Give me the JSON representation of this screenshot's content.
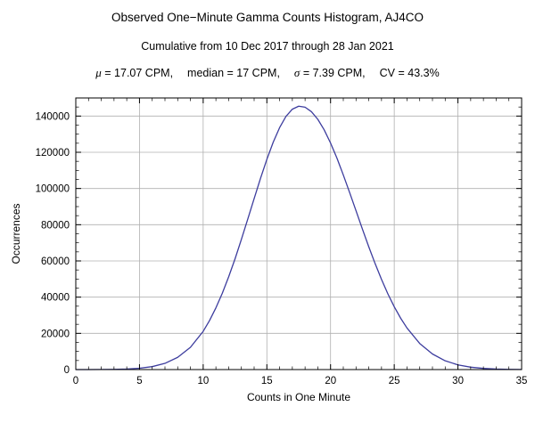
{
  "header": {
    "title": "Observed One−Minute Gamma Counts Histogram, AJ4CO",
    "subtitle": "Cumulative from 10 Dec 2017 through 28 Jan 2021",
    "stats": {
      "mu_symbol": "μ",
      "mu_rest": " = 17.07 CPM,",
      "median": "median = 17 CPM,",
      "sigma_symbol": "σ",
      "sigma_rest": " = 7.39 CPM,",
      "cv": "CV = 43.3%"
    },
    "stat_values": {
      "mean_cpm": 17.07,
      "median_cpm": 17,
      "sigma_cpm": 7.39,
      "cv_percent": 43.3
    }
  },
  "chart_data": {
    "type": "line",
    "title": "Observed One−Minute Gamma Counts Histogram, AJ4CO",
    "subtitle": "Cumulative from 10 Dec 2017 through 28 Jan 2021",
    "xlabel": "Counts in One Minute",
    "ylabel": "Occurrences",
    "xlim": [
      0,
      35
    ],
    "ylim": [
      0,
      150000
    ],
    "xticks": [
      0,
      5,
      10,
      15,
      20,
      25,
      30,
      35
    ],
    "yticks": [
      0,
      20000,
      40000,
      60000,
      80000,
      100000,
      120000,
      140000
    ],
    "x_minor_step": 1,
    "y_minor_step": 5000,
    "grid": true,
    "legend": "none",
    "line_color": "#3d3d9e",
    "grid_color": "#b0b0b0",
    "frame_color": "#000000",
    "peak": {
      "x": 17.5,
      "y": 145500
    },
    "points": [
      [
        0,
        5
      ],
      [
        1,
        15
      ],
      [
        2,
        45
      ],
      [
        3,
        120
      ],
      [
        4,
        305
      ],
      [
        5,
        730
      ],
      [
        6,
        1630
      ],
      [
        7,
        3420
      ],
      [
        8,
        6750
      ],
      [
        9,
        12300
      ],
      [
        10,
        21100
      ],
      [
        10.5,
        27100
      ],
      [
        11,
        34100
      ],
      [
        11.5,
        42100
      ],
      [
        12,
        51200
      ],
      [
        12.5,
        61100
      ],
      [
        13,
        71900
      ],
      [
        13.5,
        83100
      ],
      [
        14,
        94400
      ],
      [
        14.5,
        105600
      ],
      [
        15,
        116100
      ],
      [
        15.5,
        125600
      ],
      [
        16,
        133600
      ],
      [
        16.5,
        139800
      ],
      [
        17,
        143800
      ],
      [
        17.5,
        145450
      ],
      [
        18,
        144900
      ],
      [
        18.5,
        142400
      ],
      [
        19,
        138200
      ],
      [
        19.5,
        132400
      ],
      [
        20,
        125100
      ],
      [
        20.5,
        116800
      ],
      [
        21,
        107500
      ],
      [
        21.5,
        97700
      ],
      [
        22,
        87700
      ],
      [
        22.5,
        77600
      ],
      [
        23,
        67800
      ],
      [
        23.5,
        58500
      ],
      [
        24,
        49800
      ],
      [
        24.5,
        41800
      ],
      [
        25,
        34700
      ],
      [
        25.5,
        28400
      ],
      [
        26,
        22950
      ],
      [
        27,
        14400
      ],
      [
        28,
        8600
      ],
      [
        29,
        4850
      ],
      [
        30,
        2600
      ],
      [
        31,
        1330
      ],
      [
        32,
        640
      ],
      [
        33,
        290
      ],
      [
        34,
        130
      ],
      [
        35,
        50
      ]
    ]
  }
}
